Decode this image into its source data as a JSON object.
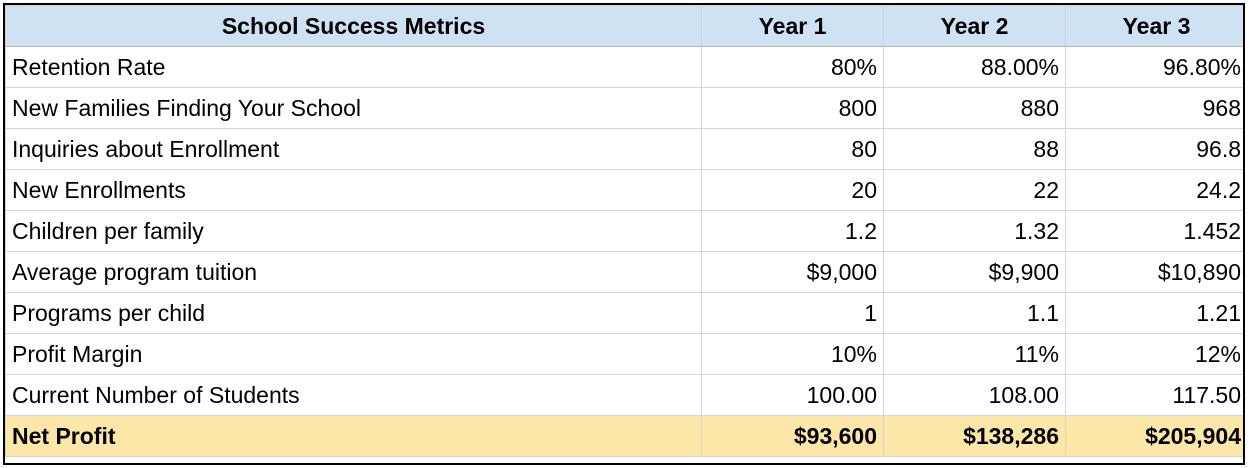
{
  "header": {
    "title": "School Success Metrics",
    "years": [
      "Year 1",
      "Year 2",
      "Year 3"
    ]
  },
  "rows": [
    {
      "label": "Retention Rate",
      "values": [
        "80%",
        "88.00%",
        "96.80%"
      ]
    },
    {
      "label": "New Families Finding Your School",
      "values": [
        "800",
        "880",
        "968"
      ]
    },
    {
      "label": "Inquiries about Enrollment",
      "values": [
        "80",
        "88",
        "96.8"
      ]
    },
    {
      "label": "New Enrollments",
      "values": [
        "20",
        "22",
        "24.2"
      ]
    },
    {
      "label": "Children per family",
      "values": [
        "1.2",
        "1.32",
        "1.452"
      ]
    },
    {
      "label": "Average program tuition",
      "values": [
        "$9,000",
        "$9,900",
        "$10,890"
      ]
    },
    {
      "label": "Programs per child",
      "values": [
        "1",
        "1.1",
        "1.21"
      ]
    },
    {
      "label": "Profit Margin",
      "values": [
        "10%",
        "11%",
        "12%"
      ]
    },
    {
      "label": "Current Number of Students",
      "values": [
        "100.00",
        "108.00",
        "117.50"
      ]
    }
  ],
  "total": {
    "label": "Net Profit",
    "values": [
      "$93,600",
      "$138,286",
      "$205,904"
    ]
  },
  "colors": {
    "header_fill": "#cfe2f3",
    "total_fill": "#fde7a8",
    "grid_line": "#d4d4d4"
  }
}
